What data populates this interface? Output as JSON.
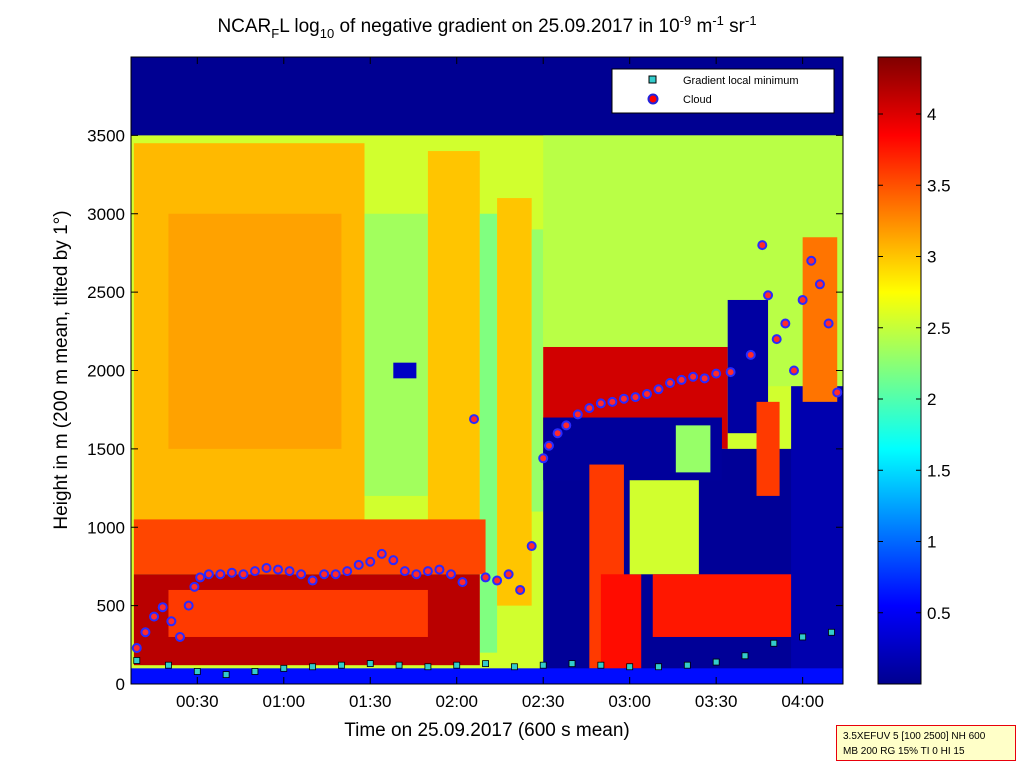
{
  "chart_data": {
    "type": "heatmap",
    "title": {
      "prefix": "NCAR",
      "prefix_sub": "F",
      "after_prefix": "L log",
      "log_sub": "10",
      "middle": " of negative gradient on 25.09.2017 in 10",
      "unit_exp1": "-9",
      "unit_mid": " m",
      "unit_exp2": "-1",
      "unit_mid2": " sr",
      "unit_exp3": "-1"
    },
    "xlabel": "Time on 25.09.2017 (600 s mean)",
    "ylabel": "Height in m (200 m mean, tilted by 1°)",
    "x_ticks": [
      {
        "label": "00:30",
        "minutes": 30
      },
      {
        "label": "01:00",
        "minutes": 60
      },
      {
        "label": "01:30",
        "minutes": 90
      },
      {
        "label": "02:00",
        "minutes": 120
      },
      {
        "label": "02:30",
        "minutes": 150
      },
      {
        "label": "03:00",
        "minutes": 180
      },
      {
        "label": "03:30",
        "minutes": 210
      },
      {
        "label": "04:00",
        "minutes": 240
      }
    ],
    "xlim_minutes": [
      7,
      254
    ],
    "y_ticks": [
      0,
      500,
      1000,
      1500,
      2000,
      2500,
      3000,
      3500
    ],
    "ylim": [
      0,
      4000
    ],
    "colorbar": {
      "ticks": [
        0.5,
        1,
        1.5,
        2,
        2.5,
        3,
        3.5,
        4
      ],
      "range": [
        0,
        4.4
      ],
      "colormap": "jet"
    },
    "legend": {
      "position": "top-right",
      "entries": [
        {
          "name": "Gradient local minimum",
          "marker": "square",
          "color": "#33cccc"
        },
        {
          "name": "Cloud",
          "marker": "circle",
          "color": "#ff0000"
        }
      ]
    },
    "layers": [
      {
        "t0": 7,
        "t1": 254,
        "h0": 0,
        "h1": 4000,
        "value": 0.08
      },
      {
        "t0": 7,
        "t1": 254,
        "h0": 0,
        "h1": 3500,
        "value": 2.55
      },
      {
        "t0": 8,
        "t1": 88,
        "h0": 1000,
        "h1": 3450,
        "value": 3.05
      },
      {
        "t0": 20,
        "t1": 80,
        "h0": 1500,
        "h1": 3000,
        "value": 3.15
      },
      {
        "t0": 88,
        "t1": 110,
        "h0": 1200,
        "h1": 3000,
        "value": 2.35
      },
      {
        "t0": 98,
        "t1": 106,
        "h0": 1950,
        "h1": 2050,
        "value": 0.3
      },
      {
        "t0": 110,
        "t1": 128,
        "h0": 1000,
        "h1": 3400,
        "value": 3.0
      },
      {
        "t0": 128,
        "t1": 134,
        "h0": 200,
        "h1": 3000,
        "value": 2.2
      },
      {
        "t0": 134,
        "t1": 146,
        "h0": 500,
        "h1": 3100,
        "value": 3.0
      },
      {
        "t0": 146,
        "t1": 150,
        "h0": 1100,
        "h1": 2900,
        "value": 2.3
      },
      {
        "t0": 150,
        "t1": 254,
        "h0": 1900,
        "h1": 3500,
        "value": 2.45
      },
      {
        "t0": 8,
        "t1": 130,
        "h0": 700,
        "h1": 1050,
        "value": 3.55
      },
      {
        "t0": 8,
        "t1": 128,
        "h0": 120,
        "h1": 700,
        "value": 4.15
      },
      {
        "t0": 20,
        "t1": 110,
        "h0": 300,
        "h1": 600,
        "value": 3.6
      },
      {
        "t0": 150,
        "t1": 214,
        "h0": 1500,
        "h1": 2150,
        "value": 4.05
      },
      {
        "t0": 150,
        "t1": 254,
        "h0": 0,
        "h1": 1500,
        "value": 0.1
      },
      {
        "t0": 150,
        "t1": 212,
        "h0": 1300,
        "h1": 1700,
        "value": 0.12
      },
      {
        "t0": 166,
        "t1": 178,
        "h0": 100,
        "h1": 1400,
        "value": 3.6
      },
      {
        "t0": 170,
        "t1": 184,
        "h0": 100,
        "h1": 700,
        "value": 3.8
      },
      {
        "t0": 180,
        "t1": 204,
        "h0": 700,
        "h1": 1300,
        "value": 2.55
      },
      {
        "t0": 196,
        "t1": 208,
        "h0": 1350,
        "h1": 1650,
        "value": 2.3
      },
      {
        "t0": 214,
        "t1": 228,
        "h0": 1600,
        "h1": 2450,
        "value": 0.15
      },
      {
        "t0": 224,
        "t1": 232,
        "h0": 1200,
        "h1": 1800,
        "value": 3.6
      },
      {
        "t0": 188,
        "t1": 254,
        "h0": 300,
        "h1": 700,
        "value": 3.75
      },
      {
        "t0": 236,
        "t1": 254,
        "h0": 0,
        "h1": 1900,
        "value": 0.2
      },
      {
        "t0": 240,
        "t1": 252,
        "h0": 1800,
        "h1": 2850,
        "value": 3.35
      },
      {
        "t0": 7,
        "t1": 254,
        "h0": 0,
        "h1": 100,
        "value": 0.6
      }
    ],
    "min_series": [
      {
        "t": 9,
        "h": 150
      },
      {
        "t": 20,
        "h": 120
      },
      {
        "t": 30,
        "h": 80
      },
      {
        "t": 40,
        "h": 60
      },
      {
        "t": 50,
        "h": 80
      },
      {
        "t": 60,
        "h": 100
      },
      {
        "t": 70,
        "h": 110
      },
      {
        "t": 80,
        "h": 120
      },
      {
        "t": 90,
        "h": 130
      },
      {
        "t": 100,
        "h": 120
      },
      {
        "t": 110,
        "h": 110
      },
      {
        "t": 120,
        "h": 120
      },
      {
        "t": 130,
        "h": 130
      },
      {
        "t": 140,
        "h": 110
      },
      {
        "t": 150,
        "h": 120
      },
      {
        "t": 160,
        "h": 130
      },
      {
        "t": 170,
        "h": 120
      },
      {
        "t": 180,
        "h": 110
      },
      {
        "t": 190,
        "h": 110
      },
      {
        "t": 200,
        "h": 120
      },
      {
        "t": 210,
        "h": 140
      },
      {
        "t": 220,
        "h": 180
      },
      {
        "t": 230,
        "h": 260
      },
      {
        "t": 240,
        "h": 300
      },
      {
        "t": 250,
        "h": 330
      }
    ],
    "cloud_series": [
      {
        "t": 9,
        "h": 230
      },
      {
        "t": 12,
        "h": 330
      },
      {
        "t": 15,
        "h": 430
      },
      {
        "t": 18,
        "h": 490
      },
      {
        "t": 21,
        "h": 400
      },
      {
        "t": 24,
        "h": 300
      },
      {
        "t": 27,
        "h": 500
      },
      {
        "t": 29,
        "h": 620
      },
      {
        "t": 31,
        "h": 680
      },
      {
        "t": 34,
        "h": 700
      },
      {
        "t": 38,
        "h": 700
      },
      {
        "t": 42,
        "h": 710
      },
      {
        "t": 46,
        "h": 700
      },
      {
        "t": 50,
        "h": 720
      },
      {
        "t": 54,
        "h": 740
      },
      {
        "t": 58,
        "h": 730
      },
      {
        "t": 62,
        "h": 720
      },
      {
        "t": 66,
        "h": 700
      },
      {
        "t": 70,
        "h": 660
      },
      {
        "t": 74,
        "h": 700
      },
      {
        "t": 78,
        "h": 700
      },
      {
        "t": 82,
        "h": 720
      },
      {
        "t": 86,
        "h": 760
      },
      {
        "t": 90,
        "h": 780
      },
      {
        "t": 94,
        "h": 830
      },
      {
        "t": 98,
        "h": 790
      },
      {
        "t": 102,
        "h": 720
      },
      {
        "t": 106,
        "h": 700
      },
      {
        "t": 110,
        "h": 720
      },
      {
        "t": 114,
        "h": 730
      },
      {
        "t": 118,
        "h": 700
      },
      {
        "t": 122,
        "h": 650
      },
      {
        "t": 126,
        "h": 1690
      },
      {
        "t": 130,
        "h": 680
      },
      {
        "t": 134,
        "h": 660
      },
      {
        "t": 138,
        "h": 700
      },
      {
        "t": 142,
        "h": 600
      },
      {
        "t": 146,
        "h": 880
      },
      {
        "t": 150,
        "h": 1440
      },
      {
        "t": 152,
        "h": 1520
      },
      {
        "t": 155,
        "h": 1600
      },
      {
        "t": 158,
        "h": 1650
      },
      {
        "t": 162,
        "h": 1720
      },
      {
        "t": 166,
        "h": 1760
      },
      {
        "t": 170,
        "h": 1790
      },
      {
        "t": 174,
        "h": 1800
      },
      {
        "t": 178,
        "h": 1820
      },
      {
        "t": 182,
        "h": 1830
      },
      {
        "t": 186,
        "h": 1850
      },
      {
        "t": 190,
        "h": 1880
      },
      {
        "t": 194,
        "h": 1920
      },
      {
        "t": 198,
        "h": 1940
      },
      {
        "t": 202,
        "h": 1960
      },
      {
        "t": 206,
        "h": 1950
      },
      {
        "t": 210,
        "h": 1980
      },
      {
        "t": 215,
        "h": 1990
      },
      {
        "t": 222,
        "h": 2100
      },
      {
        "t": 226,
        "h": 2800
      },
      {
        "t": 228,
        "h": 2480
      },
      {
        "t": 231,
        "h": 2200
      },
      {
        "t": 234,
        "h": 2300
      },
      {
        "t": 237,
        "h": 2000
      },
      {
        "t": 240,
        "h": 2450
      },
      {
        "t": 243,
        "h": 2700
      },
      {
        "t": 246,
        "h": 2550
      },
      {
        "t": 249,
        "h": 2300
      },
      {
        "t": 252,
        "h": 1860
      }
    ]
  }
}
